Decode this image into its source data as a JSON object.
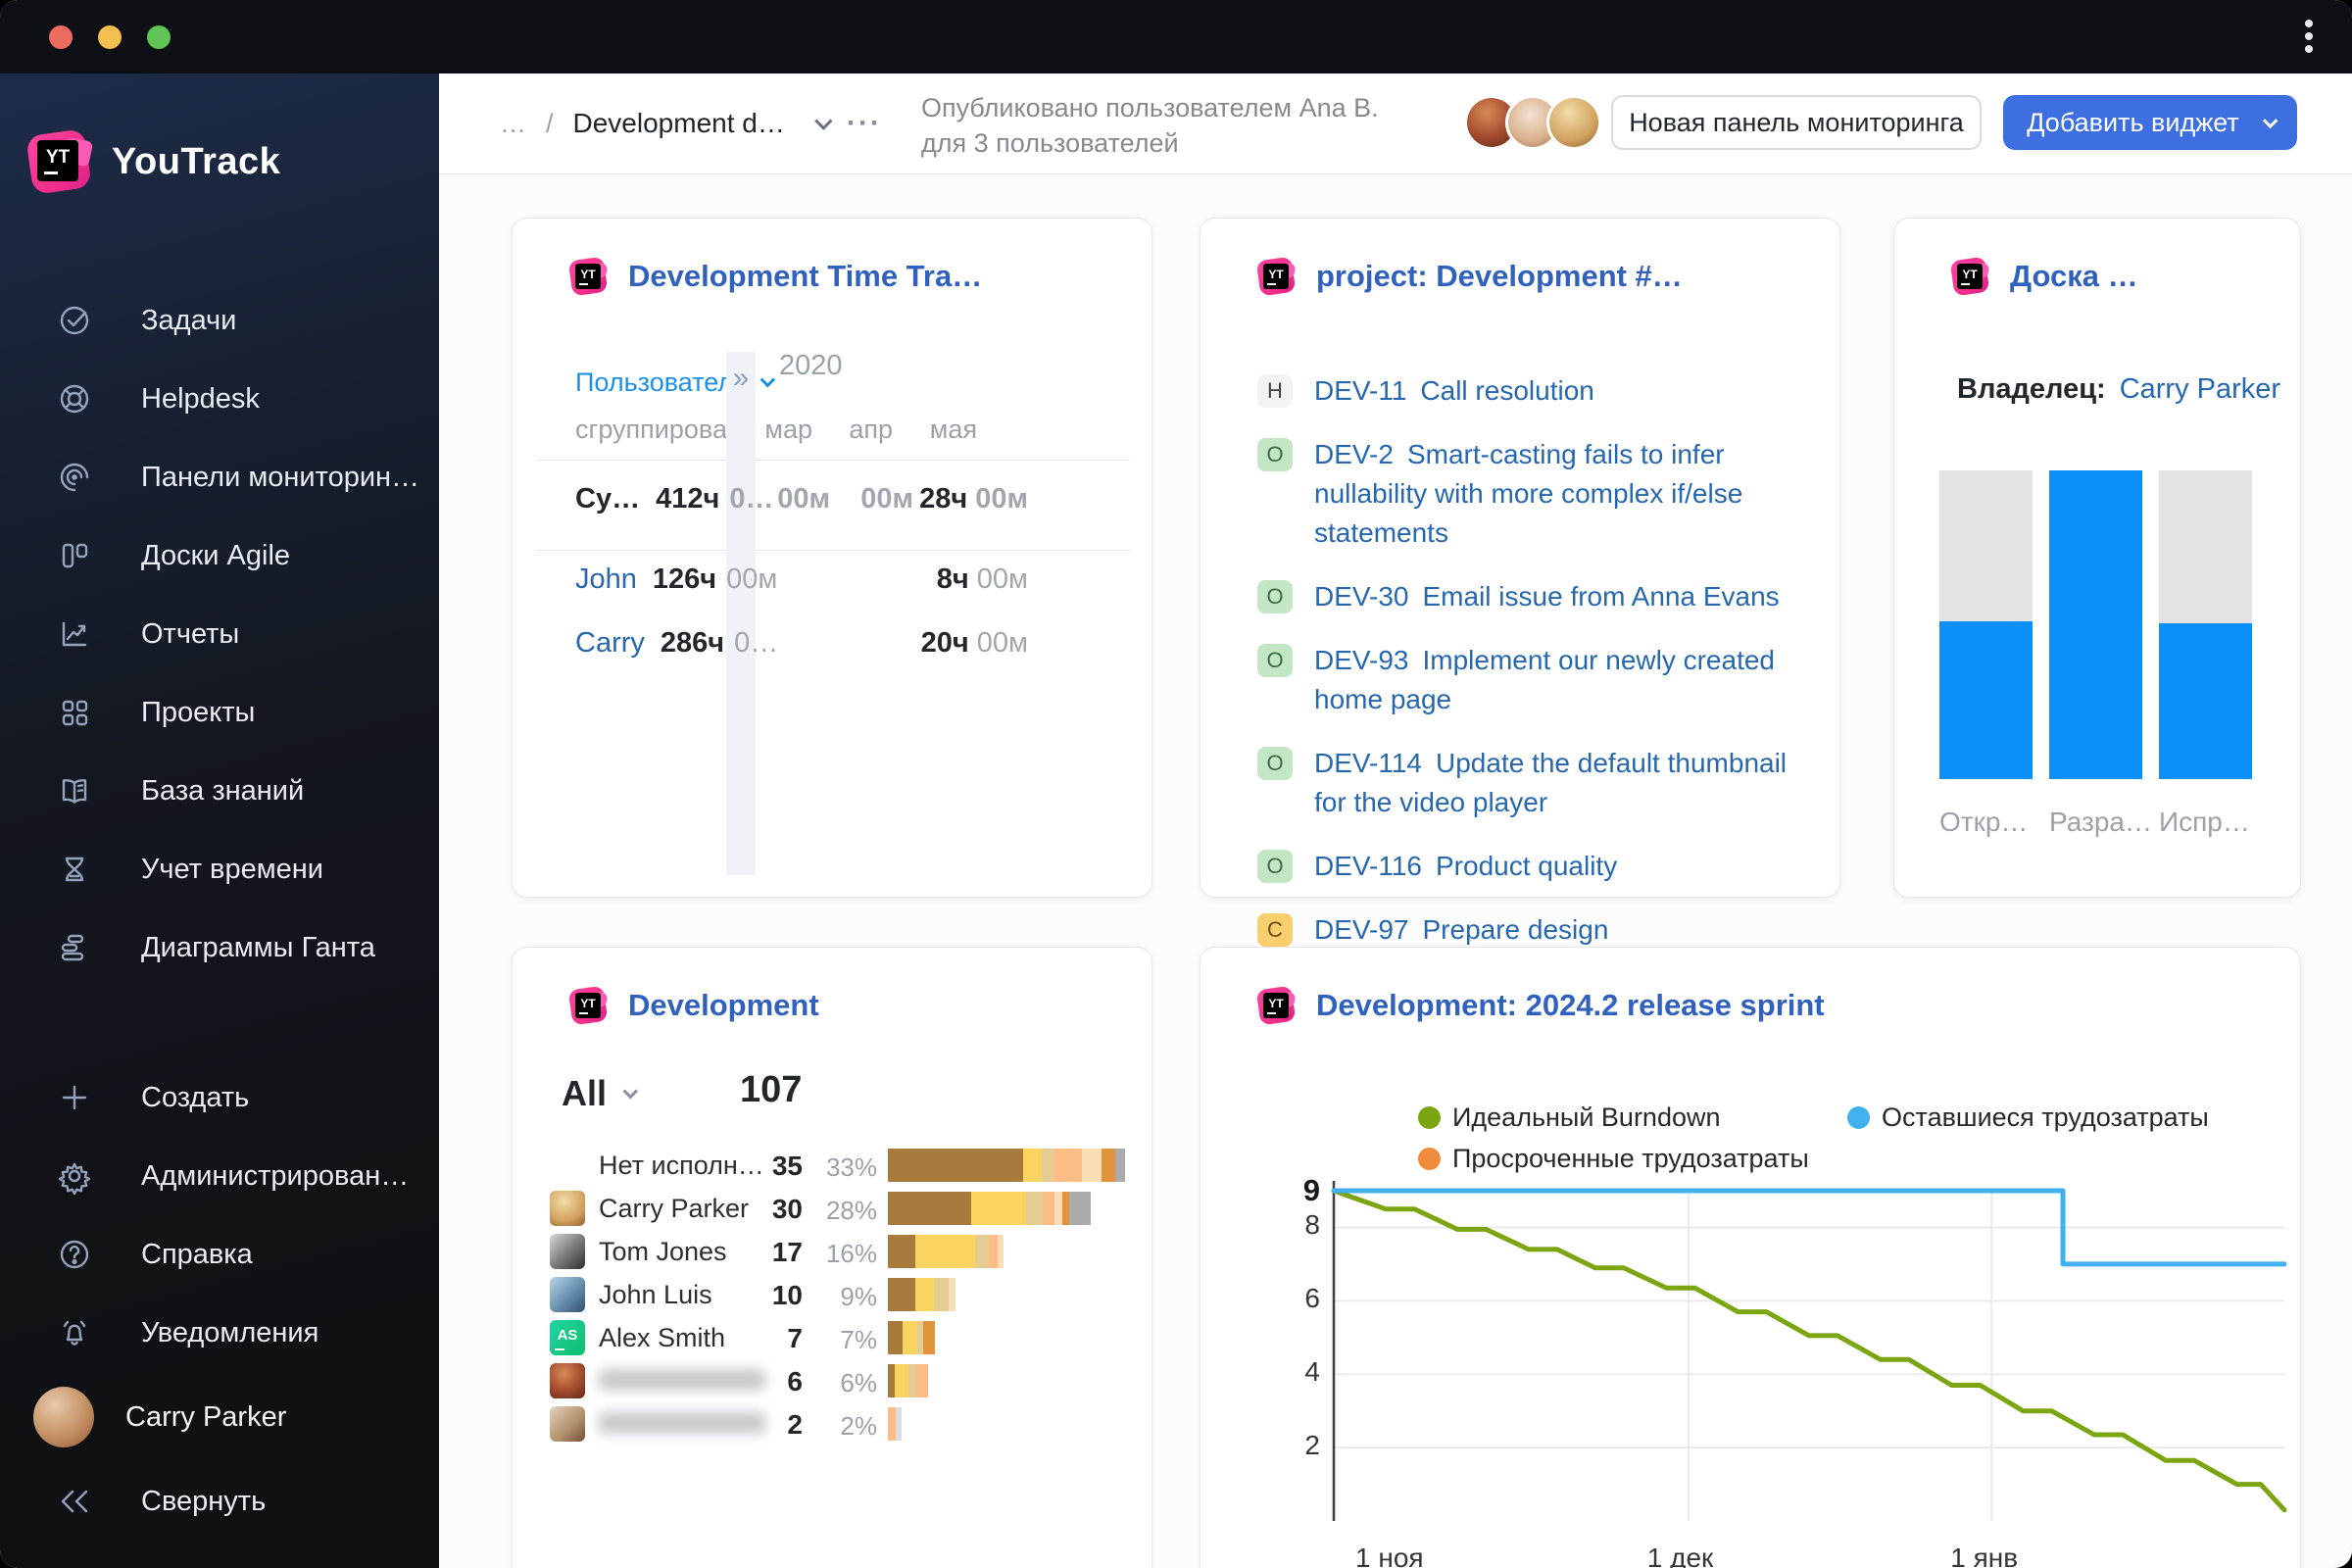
{
  "window": {
    "traffic_lights": [
      "#EC6A5E",
      "#F5BF4F",
      "#61C454"
    ],
    "menu_icon": "kebab-vertical"
  },
  "sidebar": {
    "brand": "YouTrack",
    "items": [
      {
        "icon": "tasks-icon",
        "label": "Задачи"
      },
      {
        "icon": "helpdesk-icon",
        "label": "Helpdesk"
      },
      {
        "icon": "dashboards-icon",
        "label": "Панели мониторин…"
      },
      {
        "icon": "agile-boards-icon",
        "label": "Доски Agile"
      },
      {
        "icon": "reports-icon",
        "label": "Отчеты"
      },
      {
        "icon": "projects-icon",
        "label": "Проекты"
      },
      {
        "icon": "knowledge-base-icon",
        "label": "База знаний"
      },
      {
        "icon": "time-tracking-icon",
        "label": "Учет времени"
      },
      {
        "icon": "gantt-icon",
        "label": "Диаграммы Ганта"
      }
    ],
    "footer_items": [
      {
        "icon": "plus-icon",
        "label": "Создать"
      },
      {
        "icon": "gear-icon",
        "label": "Администрирован…"
      },
      {
        "icon": "help-icon",
        "label": "Справка"
      },
      {
        "icon": "bell-icon",
        "label": "Уведомления"
      }
    ],
    "user": {
      "name": "Carry Parker"
    },
    "collapse_label": "Свернуть"
  },
  "header": {
    "breadcrumb_ellipsis": "…",
    "breadcrumb_separator": "/",
    "title": "Development d…",
    "more": "···",
    "published_line1": "Опубликовано пользователем Ana B.",
    "published_line2": "для 3 пользователей",
    "avatars": [
      "av-red",
      "av-light",
      "av-blonde"
    ],
    "new_dashboard_label": "Новая панель мониторинга",
    "add_widget_label": "Добавить виджет"
  },
  "colors": {
    "accent_blue": "#3D6FE0",
    "widget_title_blue": "#3161BE",
    "link_blue": "#2767AE",
    "bright_blue": "#1E8FE8",
    "bar_blue": "#0A90F8",
    "bar_gray": "#E2E4E8",
    "burn_green": "#7CA512",
    "burn_sky": "#41B1EE",
    "burn_orange": "#F08B3D",
    "stack_palette": {
      "brown": "#A67B3C",
      "yellow": "#FBD45F",
      "tan": "#E3CD92",
      "peach": "#FBBD85",
      "pale": "#FBDDB5",
      "orange": "#E0943C",
      "gray": "#ABABAB",
      "lightgray": "#D9DCE0"
    }
  },
  "widgets": {
    "time_tracking": {
      "title": "Development Time Tra…",
      "group_field": "Пользователи",
      "group_hint": "сгруппировать п",
      "expand_icon": "»",
      "year": "2020",
      "months": [
        "мар",
        "апр",
        "мая"
      ],
      "rows": [
        {
          "name": "Су…",
          "bold": true,
          "total_h": "412ч",
          "total_m": "0…",
          "values": [
            {
              "h": "",
              "m": "00м"
            },
            {
              "h": "",
              "m": "00м"
            },
            {
              "h": "28ч",
              "m": "00м"
            }
          ]
        },
        {
          "name": "John",
          "link": true,
          "total_h": "126ч",
          "total_m": "00м",
          "values": [
            null,
            null,
            {
              "h": "8ч",
              "m": "00м"
            }
          ]
        },
        {
          "name": "Carry",
          "link": true,
          "total_h": "286ч",
          "total_m": "0…",
          "values": [
            null,
            null,
            {
              "h": "20ч",
              "m": "00м"
            }
          ]
        }
      ]
    },
    "project_issues": {
      "title": "project: Development #…",
      "issues": [
        {
          "badge": "H",
          "badge_color": "gray",
          "id": "DEV-11",
          "summary": "Call resolution"
        },
        {
          "badge": "O",
          "badge_color": "green",
          "id": "DEV-2",
          "summary": "Smart-casting fails to infer nullability with more complex if/else statements"
        },
        {
          "badge": "O",
          "badge_color": "green",
          "id": "DEV-30",
          "summary": "Email issue from Anna Evans"
        },
        {
          "badge": "O",
          "badge_color": "green",
          "id": "DEV-93",
          "summary": "Implement our newly created home page"
        },
        {
          "badge": "O",
          "badge_color": "green",
          "id": "DEV-114",
          "summary": "Update the default thumbnail for the video player"
        },
        {
          "badge": "O",
          "badge_color": "green",
          "id": "DEV-116",
          "summary": "Product quality"
        },
        {
          "badge": "C",
          "badge_color": "yellow",
          "id": "DEV-97",
          "summary": "Prepare design"
        }
      ]
    },
    "board": {
      "title": "Доска …",
      "owner_label": "Владелец:",
      "owner_name": "Carry Parker",
      "chart_data": {
        "type": "bar",
        "categories": [
          "Откр…",
          "Разра…",
          "Испр…"
        ],
        "values_filled_fraction": [
          0.51,
          1.0,
          0.505
        ],
        "filled_color": "#0A90F8",
        "rest_color": "#E2E4E8"
      }
    },
    "development": {
      "title": "Development",
      "filter_label": "All",
      "total": "107",
      "chart_data": {
        "type": "bar",
        "orientation": "horizontal-stacked",
        "max_count": 35,
        "rows": [
          {
            "name": "Нет исполн…",
            "avatar": "none",
            "count": 35,
            "percent": "33%",
            "segments": [
              [
                "brown",
                0.57
              ],
              [
                "yellow",
                0.08
              ],
              [
                "tan",
                0.05
              ],
              [
                "peach",
                0.12
              ],
              [
                "pale",
                0.08
              ],
              [
                "orange",
                0.06
              ],
              [
                "gray",
                0.04
              ]
            ]
          },
          {
            "name": "Carry Parker",
            "avatar": "av-blonde",
            "count": 30,
            "percent": "28%",
            "segments": [
              [
                "brown",
                0.41
              ],
              [
                "yellow",
                0.27
              ],
              [
                "tan",
                0.08
              ],
              [
                "peach",
                0.06
              ],
              [
                "pale",
                0.04
              ],
              [
                "orange",
                0.03
              ],
              [
                "gray",
                0.11
              ]
            ]
          },
          {
            "name": "Tom Jones",
            "avatar": "av-hat",
            "count": 17,
            "percent": "16%",
            "segments": [
              [
                "brown",
                0.24
              ],
              [
                "yellow",
                0.52
              ],
              [
                "tan",
                0.12
              ],
              [
                "peach",
                0.07
              ],
              [
                "pale",
                0.05
              ]
            ]
          },
          {
            "name": "John Luis",
            "avatar": "av-blue",
            "count": 10,
            "percent": "9%",
            "segments": [
              [
                "brown",
                0.4
              ],
              [
                "yellow",
                0.28
              ],
              [
                "tan",
                0.22
              ],
              [
                "pale",
                0.1
              ]
            ]
          },
          {
            "name": "Alex Smith",
            "avatar": "as",
            "avatar_text": "AS",
            "count": 7,
            "percent": "7%",
            "segments": [
              [
                "brown",
                0.3
              ],
              [
                "yellow",
                0.33
              ],
              [
                "tan",
                0.12
              ],
              [
                "orange",
                0.25
              ]
            ]
          },
          {
            "name": "",
            "redacted": true,
            "avatar": "av-red",
            "count": 6,
            "percent": "6%",
            "segments": [
              [
                "brown",
                0.17
              ],
              [
                "yellow",
                0.34
              ],
              [
                "tan",
                0.17
              ],
              [
                "peach",
                0.32
              ]
            ]
          },
          {
            "name": "",
            "redacted": true,
            "avatar": "av-beard",
            "count": 2,
            "percent": "2%",
            "segments": [
              [
                "peach",
                0.6
              ],
              [
                "lightgray",
                0.4
              ]
            ]
          }
        ]
      }
    },
    "burndown": {
      "title": "Development: 2024.2 release sprint",
      "legend": [
        {
          "label": "Идеальный Burndown",
          "color": "#7CA512"
        },
        {
          "label": "Оставшиеся трудозатраты",
          "color": "#41B1EE"
        },
        {
          "label": "Просроченные трудозатраты",
          "color": "#F08B3D"
        }
      ],
      "chart_data": {
        "type": "line",
        "ylim": [
          0,
          9.4
        ],
        "y_ticks": [
          {
            "v": 9,
            "bold": true
          },
          {
            "v": 8
          },
          {
            "v": 6
          },
          {
            "v": 4
          },
          {
            "v": 2
          }
        ],
        "x_ticks": [
          {
            "label": "1 ноя",
            "pos": 0.066
          },
          {
            "label": "1 дек",
            "pos": 0.373
          },
          {
            "label": "1 янв",
            "pos": 0.692
          }
        ],
        "grid_x": [
          0.373,
          0.692
        ],
        "series": [
          {
            "name": "Идеальный Burndown",
            "color": "#7CA512",
            "points": [
              [
                0,
                9
              ],
              [
                0.055,
                8.5
              ],
              [
                0.085,
                8.5
              ],
              [
                0.13,
                7.95
              ],
              [
                0.16,
                7.95
              ],
              [
                0.205,
                7.4
              ],
              [
                0.235,
                7.4
              ],
              [
                0.275,
                6.9
              ],
              [
                0.305,
                6.9
              ],
              [
                0.35,
                6.35
              ],
              [
                0.38,
                6.35
              ],
              [
                0.425,
                5.7
              ],
              [
                0.455,
                5.7
              ],
              [
                0.5,
                5.05
              ],
              [
                0.53,
                5.05
              ],
              [
                0.575,
                4.4
              ],
              [
                0.605,
                4.4
              ],
              [
                0.65,
                3.7
              ],
              [
                0.68,
                3.7
              ],
              [
                0.725,
                3.0
              ],
              [
                0.755,
                3.0
              ],
              [
                0.8,
                2.35
              ],
              [
                0.83,
                2.35
              ],
              [
                0.875,
                1.65
              ],
              [
                0.905,
                1.65
              ],
              [
                0.95,
                1.0
              ],
              [
                0.975,
                1.0
              ],
              [
                1.0,
                0.3
              ]
            ]
          },
          {
            "name": "Оставшиеся трудозатраты",
            "color": "#41B1EE",
            "points": [
              [
                0,
                9
              ],
              [
                0.767,
                9
              ],
              [
                0.767,
                7
              ],
              [
                1,
                7
              ]
            ]
          },
          {
            "name": "Просроченные трудозатраты",
            "color": "#F08B3D",
            "points": []
          }
        ]
      }
    }
  }
}
